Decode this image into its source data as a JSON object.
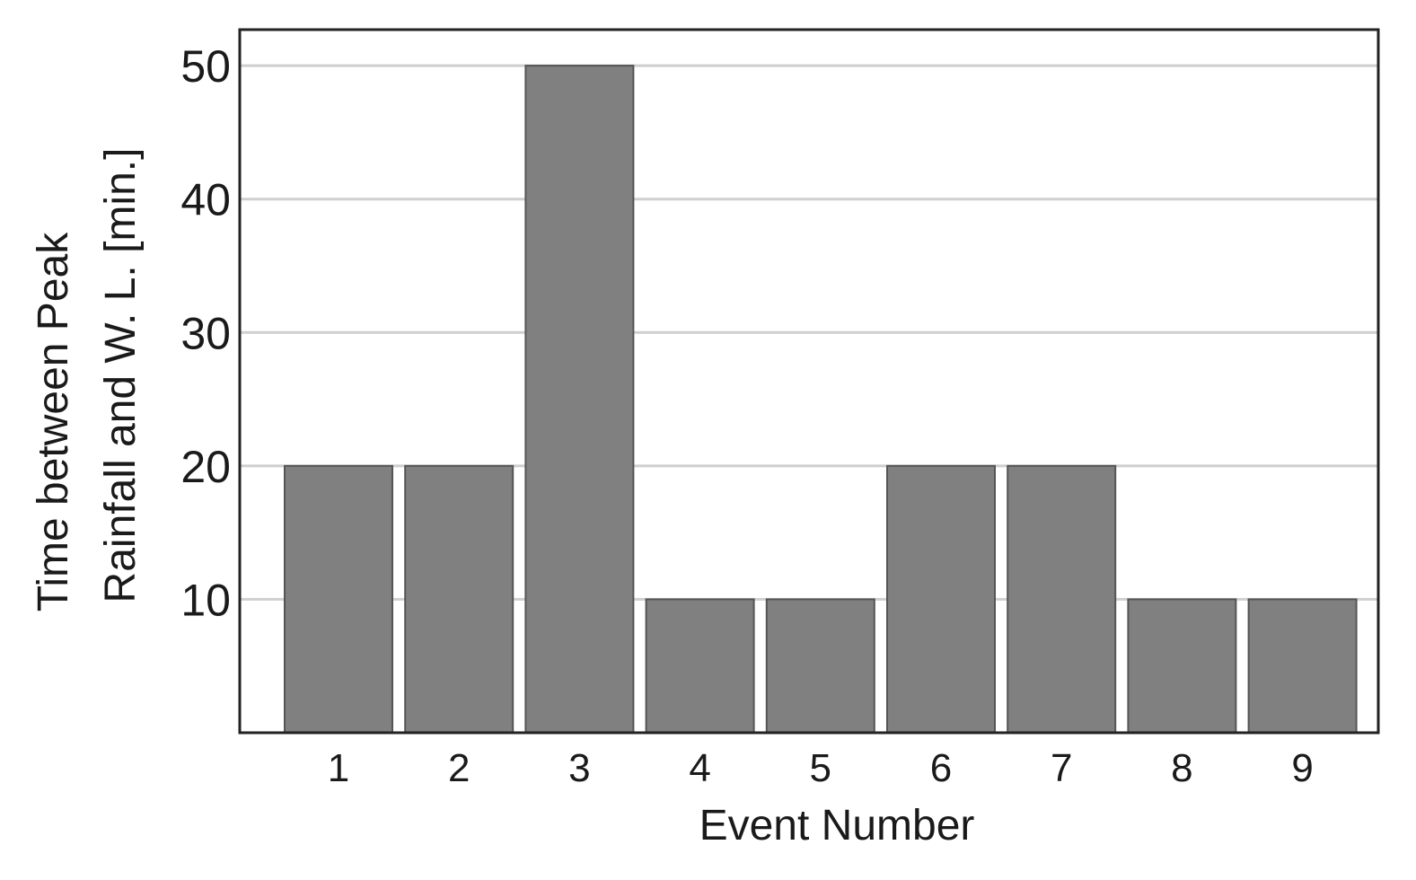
{
  "chart_data": {
    "type": "bar",
    "categories": [
      "1",
      "2",
      "3",
      "4",
      "5",
      "6",
      "7",
      "8",
      "9"
    ],
    "values": [
      20,
      20,
      50,
      10,
      10,
      20,
      20,
      10,
      10
    ],
    "title": "",
    "xlabel": "Event Number",
    "ylabel_lines": [
      "Time between Peak",
      "Rainfall and W. L. [min.]"
    ],
    "ylim": [
      0,
      52.7
    ],
    "yticks": [
      10,
      20,
      30,
      40,
      50
    ],
    "grid": "horizontal",
    "colors": {
      "bar": "#808080",
      "bar_edge": "#555555",
      "grid": "#cfcfcf",
      "frame": "#222222"
    }
  }
}
